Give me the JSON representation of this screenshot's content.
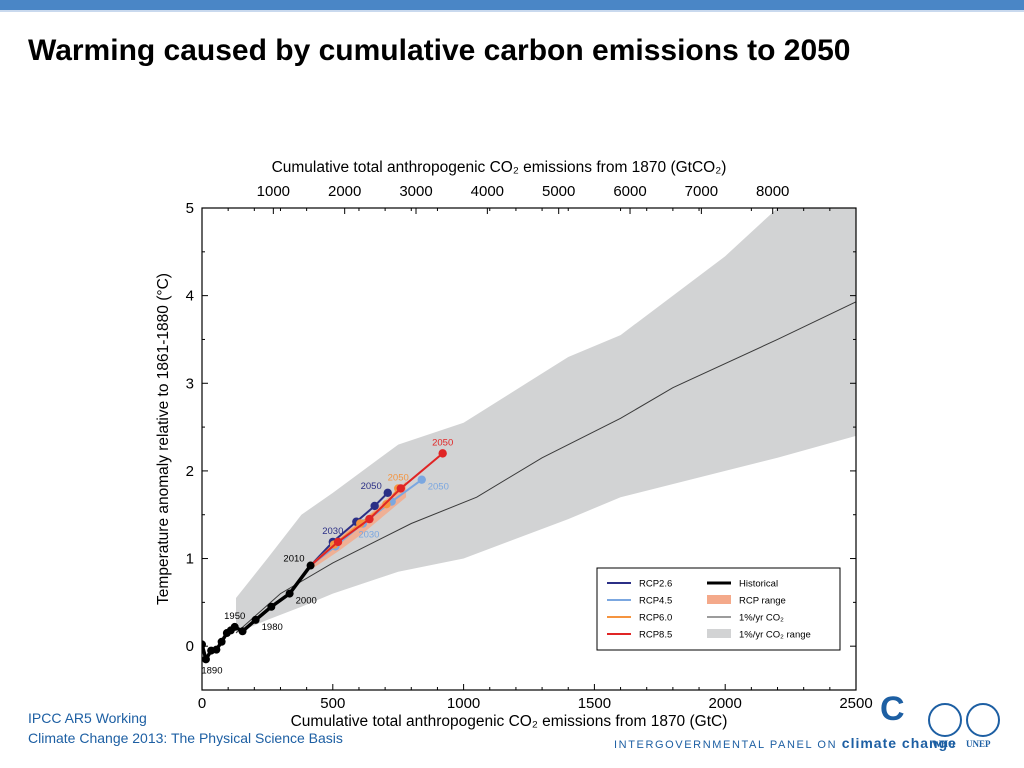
{
  "slide": {
    "title": "Warming caused by cumulative carbon emissions to 2050",
    "footer_line1": "IPCC AR5 Working",
    "footer_line2": "Climate Change 2013:  The Physical Science Basis",
    "ipcc_c": "C",
    "ipcc_text_prefix": "INTERGOVERNMENTAL PANEL ON",
    "ipcc_text_name": "climate change",
    "who_label": "WHO",
    "unep_label": "UNEP"
  },
  "chart_data": {
    "type": "line",
    "xlabel_bottom": "Cumulative total anthropogenic CO₂ emissions from 1870 (GtC)",
    "xlabel_top": "Cumulative total anthropogenic CO₂ emissions from 1870 (GtCO₂)",
    "ylabel": "Temperature anomaly relative to 1861-1880 (°C)",
    "xlim": [
      0,
      2500
    ],
    "ylim": [
      -0.5,
      5
    ],
    "x_ticks": [
      0,
      500,
      1000,
      1500,
      2000,
      2500
    ],
    "y_ticks": [
      0,
      1,
      2,
      3,
      4,
      5
    ],
    "top_ticks": [
      1000,
      2000,
      3000,
      4000,
      5000,
      6000,
      7000,
      8000
    ],
    "gtc_per_gtco2": 0.2727,
    "colors": {
      "rcp26": "#2b2f86",
      "rcp45": "#7ba7e0",
      "rcp60": "#f5943f",
      "rcp85": "#e02525",
      "historical": "#000000",
      "rcp_range": "#f4a98a",
      "onepct": "#3a3a3a",
      "onepct_range": "#d2d3d4"
    },
    "onepct_range": {
      "x": [
        130,
        250,
        380,
        500,
        750,
        1000,
        1400,
        1600,
        2000,
        2200,
        2500
      ],
      "upper": [
        0.55,
        1.0,
        1.5,
        1.75,
        2.3,
        2.55,
        3.3,
        3.55,
        4.45,
        5.0,
        5.0
      ],
      "lower": [
        0.15,
        0.3,
        0.45,
        0.6,
        0.85,
        1.0,
        1.45,
        1.7,
        2.0,
        2.15,
        2.4
      ]
    },
    "onepct_line": {
      "x": [
        130,
        300,
        500,
        800,
        1050,
        1300,
        1600,
        1800,
        2200,
        2500
      ],
      "y": [
        0.15,
        0.6,
        0.95,
        1.4,
        1.7,
        2.15,
        2.6,
        2.95,
        3.5,
        3.93
      ]
    },
    "rcp_range": {
      "x": [
        420,
        520,
        620,
        720,
        780
      ],
      "upper": [
        0.95,
        1.25,
        1.45,
        1.72,
        1.88
      ],
      "lower": [
        0.88,
        1.08,
        1.3,
        1.55,
        1.7
      ]
    },
    "series": [
      {
        "name": "Historical",
        "key": "historical",
        "x": [
          0,
          15,
          35,
          55,
          75,
          95,
          110,
          125,
          155,
          205,
          265,
          335,
          415
        ],
        "y": [
          0.02,
          -0.15,
          -0.05,
          -0.04,
          0.05,
          0.15,
          0.18,
          0.22,
          0.17,
          0.3,
          0.45,
          0.6,
          0.92
        ],
        "labels": [
          {
            "text": "1890",
            "x": 15,
            "y": -0.15,
            "pos": "below"
          },
          {
            "text": "1950",
            "x": 125,
            "y": 0.22,
            "pos": "above"
          },
          {
            "text": "1980",
            "x": 205,
            "y": 0.3,
            "pos": "right"
          },
          {
            "text": "2000",
            "x": 335,
            "y": 0.6,
            "pos": "right"
          },
          {
            "text": "2010",
            "x": 415,
            "y": 0.92,
            "pos": "left"
          }
        ]
      },
      {
        "name": "RCP2.6",
        "key": "rcp26",
        "x": [
          415,
          500,
          590,
          660,
          710
        ],
        "y": [
          0.92,
          1.19,
          1.42,
          1.6,
          1.75
        ],
        "labels": [
          {
            "text": "2030",
            "x": 500,
            "y": 1.19,
            "pos": "above"
          },
          {
            "text": "2050",
            "x": 710,
            "y": 1.75,
            "pos": "left"
          }
        ]
      },
      {
        "name": "RCP4.5",
        "key": "rcp45",
        "x": [
          415,
          510,
          615,
          725,
          840
        ],
        "y": [
          0.92,
          1.14,
          1.4,
          1.65,
          1.9
        ],
        "labels": [
          {
            "text": "2030",
            "x": 615,
            "y": 1.4,
            "pos": "below"
          },
          {
            "text": "2050",
            "x": 840,
            "y": 1.9,
            "pos": "right"
          }
        ]
      },
      {
        "name": "RCP6.0",
        "key": "rcp60",
        "x": [
          415,
          505,
          605,
          705,
          750
        ],
        "y": [
          0.92,
          1.16,
          1.4,
          1.62,
          1.8
        ],
        "labels": [
          {
            "text": "2050",
            "x": 750,
            "y": 1.8,
            "pos": "above"
          }
        ]
      },
      {
        "name": "RCP8.5",
        "key": "rcp85",
        "x": [
          415,
          520,
          640,
          760,
          920
        ],
        "y": [
          0.92,
          1.19,
          1.45,
          1.8,
          2.2
        ],
        "labels": [
          {
            "text": "2050",
            "x": 920,
            "y": 2.2,
            "pos": "above"
          }
        ]
      }
    ],
    "legend": {
      "placement": "bottom-right",
      "items": [
        {
          "label": "RCP2.6",
          "key": "rcp26",
          "kind": "line"
        },
        {
          "label": "RCP4.5",
          "key": "rcp45",
          "kind": "line"
        },
        {
          "label": "RCP6.0",
          "key": "rcp60",
          "kind": "line"
        },
        {
          "label": "RCP8.5",
          "key": "rcp85",
          "kind": "line"
        },
        {
          "label": "Historical",
          "key": "historical",
          "kind": "thick"
        },
        {
          "label": "RCP range",
          "key": "rcp_range",
          "kind": "box"
        },
        {
          "label": "1%/yr CO₂",
          "key": "onepct",
          "kind": "thin"
        },
        {
          "label": "1%/yr CO₂ range",
          "key": "onepct_range",
          "kind": "box"
        }
      ]
    }
  }
}
